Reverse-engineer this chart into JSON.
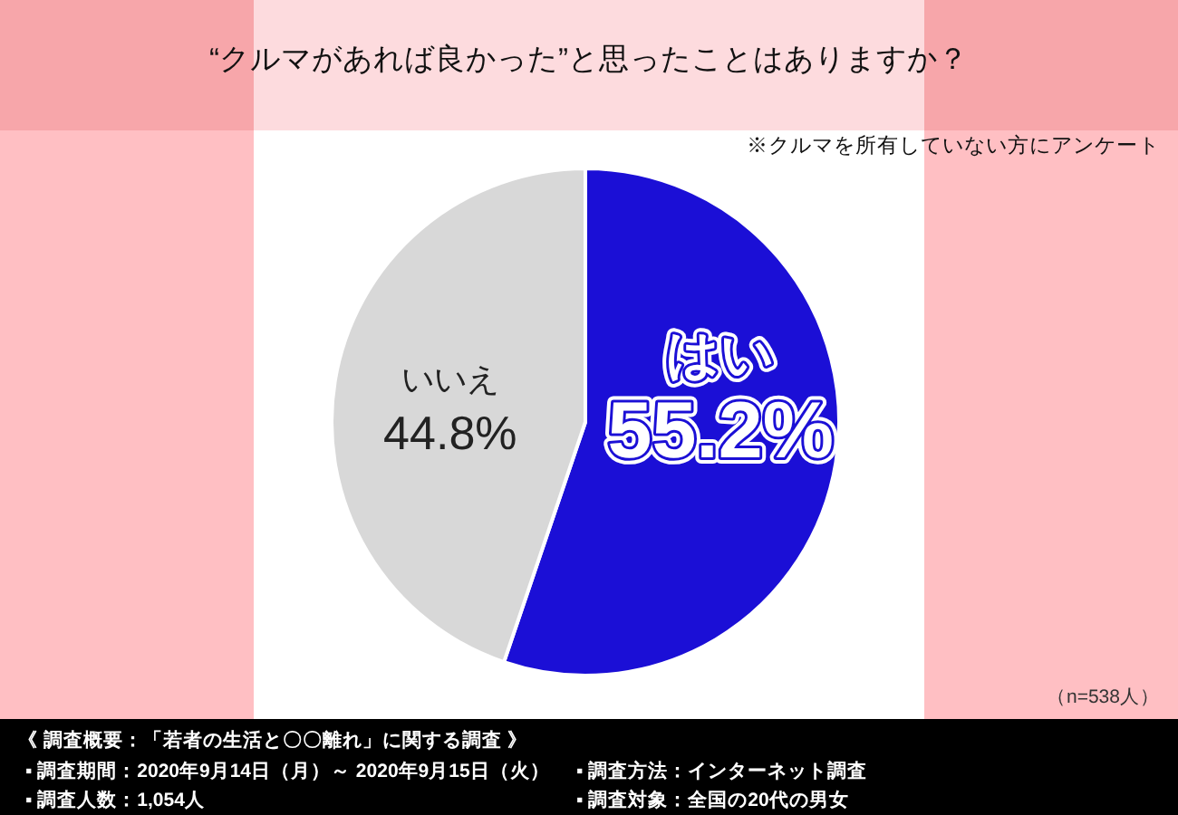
{
  "chart_data": {
    "type": "pie",
    "title": "“クルマがあれば良かった”と思ったことはありますか？",
    "subtitle": "※クルマを所有していない方にアンケート",
    "categories": [
      "はい",
      "いいえ"
    ],
    "values": [
      55.2,
      44.8
    ],
    "colors": [
      "#1b0fd6",
      "#d8d8d8"
    ],
    "value_labels": [
      "55.2%",
      "44.8%"
    ],
    "annotations": [
      "（n=538人）",
      "《 調査概要：「若者の生活と〇〇離れ」に関する調査 》",
      "▪ 調査期間：2020年9月14日（月）～ 2020年9月15日（火）",
      "▪ 調査方法：インターネット調査",
      "▪ 調査人数：1,054人",
      "▪ 調査対象：全国の20代の男女"
    ]
  }
}
